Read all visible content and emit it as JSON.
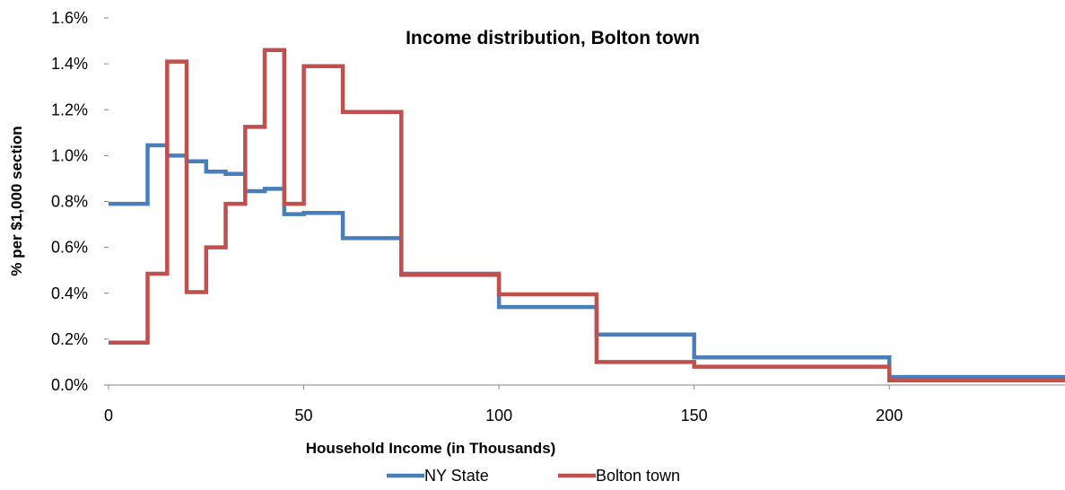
{
  "chart_data": {
    "type": "line",
    "step": true,
    "title": "Income distribution, Bolton town",
    "xlabel": "Household Income (in Thousands)",
    "ylabel": "% per $1,000 section",
    "xlim": [
      0,
      245
    ],
    "ylim": [
      0,
      1.6
    ],
    "x_ticks": [
      0,
      50,
      100,
      150,
      200
    ],
    "y_ticks": [
      0.0,
      0.2,
      0.4,
      0.6,
      0.8,
      1.0,
      1.2,
      1.4,
      1.6
    ],
    "y_tick_labels": [
      "0.0%",
      "0.2%",
      "0.4%",
      "0.6%",
      "0.8%",
      "1.0%",
      "1.2%",
      "1.4%",
      "1.6%"
    ],
    "grid": false,
    "legend_position": "bottom",
    "bin_edges": [
      0,
      10,
      15,
      20,
      25,
      30,
      35,
      40,
      45,
      50,
      60,
      75,
      100,
      125,
      150,
      200,
      245
    ],
    "series": [
      {
        "name": "NY State",
        "color": "#4a7ebb",
        "values": [
          0.79,
          1.045,
          1.0,
          0.975,
          0.93,
          0.92,
          0.845,
          0.855,
          0.745,
          0.75,
          0.64,
          0.485,
          0.34,
          0.22,
          0.12,
          0.035
        ]
      },
      {
        "name": "Bolton town",
        "color": "#c0504d",
        "values": [
          0.185,
          0.485,
          1.41,
          0.405,
          0.6,
          0.79,
          1.125,
          1.46,
          0.79,
          1.39,
          1.19,
          0.48,
          0.395,
          0.1,
          0.08,
          0.02
        ]
      }
    ]
  }
}
